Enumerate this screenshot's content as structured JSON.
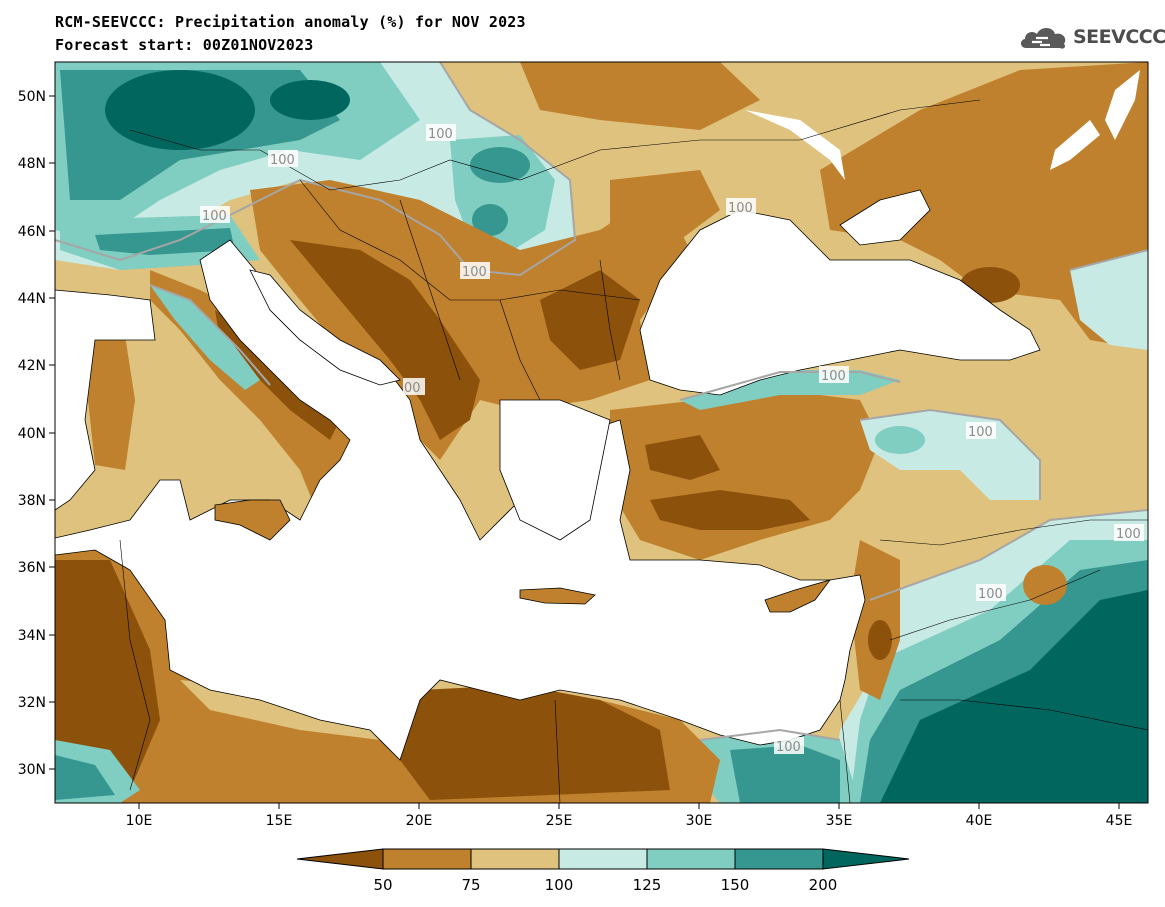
{
  "title": {
    "line1": "RCM-SEEVCCC: Precipitation anomaly (%) for NOV 2023",
    "line2": "Forecast start: 00Z01NOV2023"
  },
  "logo": {
    "text": "SEEVCCC",
    "icon": "cloud-logo-icon"
  },
  "map": {
    "lon_range": [
      7,
      46
    ],
    "lat_range": [
      29,
      51
    ],
    "lat_ticks": [
      "50N",
      "48N",
      "46N",
      "44N",
      "42N",
      "40N",
      "38N",
      "36N",
      "34N",
      "32N",
      "30N"
    ],
    "lon_ticks": [
      "10E",
      "15E",
      "20E",
      "25E",
      "30E",
      "35E",
      "40E",
      "45E"
    ],
    "contour_labels": [
      "100",
      "100",
      "100",
      "100",
      "00",
      "100",
      "100",
      "100",
      "100",
      "100",
      "100"
    ]
  },
  "colorbar": {
    "colors": [
      "#8c510a",
      "#bf812d",
      "#dfc27d",
      "#c7eae5",
      "#80cdc1",
      "#35978f",
      "#01665e"
    ],
    "labels": [
      "50",
      "75",
      "100",
      "125",
      "150",
      "200"
    ]
  },
  "palette": {
    "dry_strong": "#8c510a",
    "dry": "#bf812d",
    "dry_light": "#dfc27d",
    "wet_light": "#c7eae5",
    "wet": "#80cdc1",
    "wet_more": "#35978f",
    "wet_strong": "#01665e",
    "sea": "#ffffff",
    "contour_line": "#a6a6a6"
  }
}
